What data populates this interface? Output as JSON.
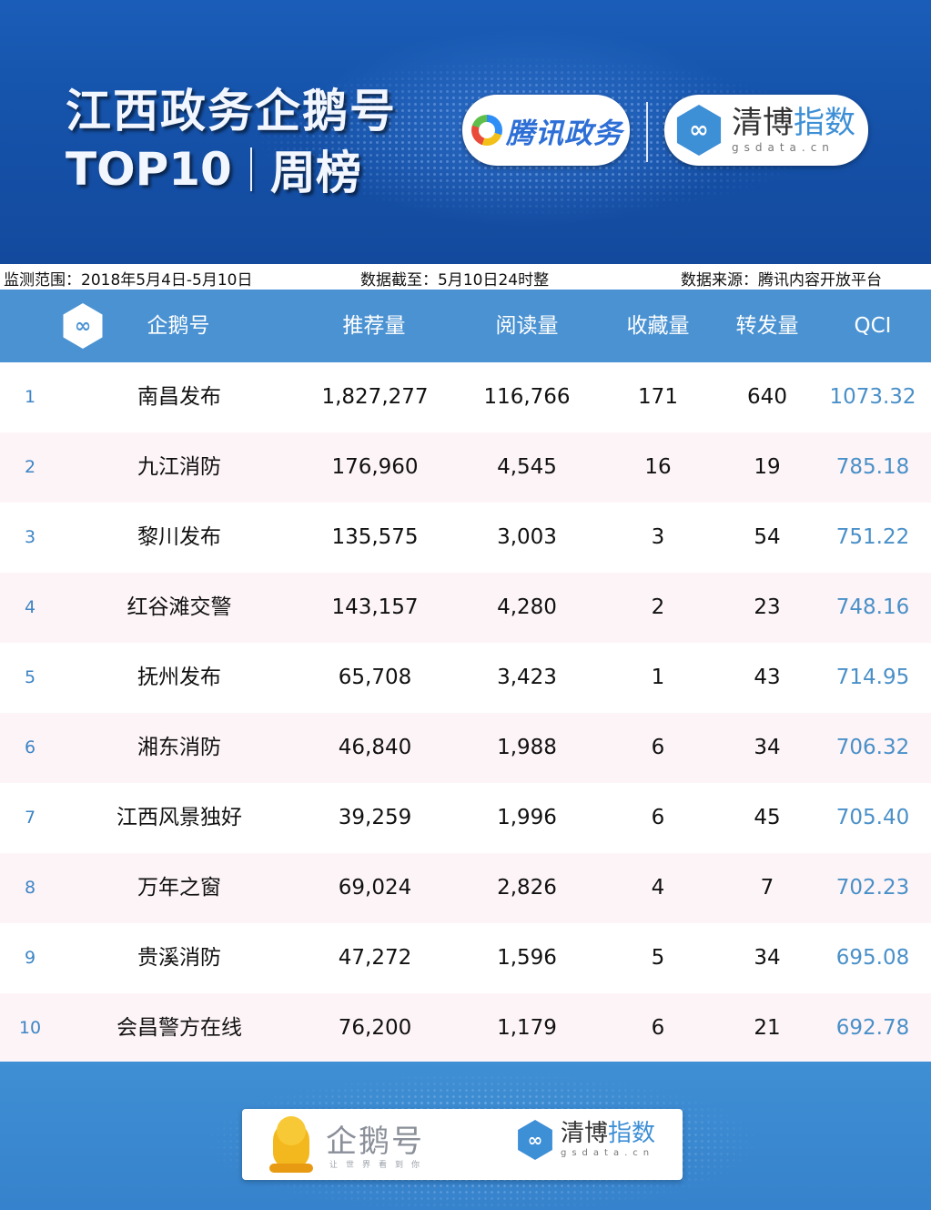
{
  "banner": {
    "title": "江西政务企鹅号",
    "subtitle_left": "TOP10",
    "subtitle_right": "周榜",
    "partner1_name": "腾讯政务",
    "partner2_name_a": "清博",
    "partner2_name_b": "指数",
    "partner2_domain": "gsdata.cn",
    "logo_glyph": "∞"
  },
  "info": {
    "range": "监测范围：2018年5月4日-5月10日",
    "cutoff": "数据截至：5月10日24时整",
    "source": "数据来源：腾讯内容开放平台"
  },
  "table": {
    "headers": [
      "企鹅号",
      "推荐量",
      "阅读量",
      "收藏量",
      "转发量",
      "QCI"
    ],
    "rows": [
      [
        "1",
        "南昌发布",
        "1,827,277",
        "116,766",
        "171",
        "640",
        "1073.32"
      ],
      [
        "2",
        "九江消防",
        "176,960",
        "4,545",
        "16",
        "19",
        "785.18"
      ],
      [
        "3",
        "黎川发布",
        "135,575",
        "3,003",
        "3",
        "54",
        "751.22"
      ],
      [
        "4",
        "红谷滩交警",
        "143,157",
        "4,280",
        "2",
        "23",
        "748.16"
      ],
      [
        "5",
        "抚州发布",
        "65,708",
        "3,423",
        "1",
        "43",
        "714.95"
      ],
      [
        "6",
        "湘东消防",
        "46,840",
        "1,988",
        "6",
        "34",
        "706.32"
      ],
      [
        "7",
        "江西风景独好",
        "39,259",
        "1,996",
        "6",
        "45",
        "705.40"
      ],
      [
        "8",
        "万年之窗",
        "69,024",
        "2,826",
        "4",
        "7",
        "702.23"
      ],
      [
        "9",
        "贵溪消防",
        "47,272",
        "1,596",
        "5",
        "34",
        "695.08"
      ],
      [
        "10",
        "会昌警方在线",
        "76,200",
        "1,179",
        "6",
        "21",
        "692.78"
      ]
    ]
  },
  "footer": {
    "brand1": "企鹅号",
    "brand1_slogan": "让世界看到你",
    "brand2_a": "清博",
    "brand2_b": "指数",
    "brand2_domain": "gsdata.cn"
  },
  "colors": {
    "header_blue": "#4a92d2",
    "banner_blue": "#1552a9",
    "qci_blue": "#4a90c8",
    "even_row": "#fdf4f7"
  }
}
